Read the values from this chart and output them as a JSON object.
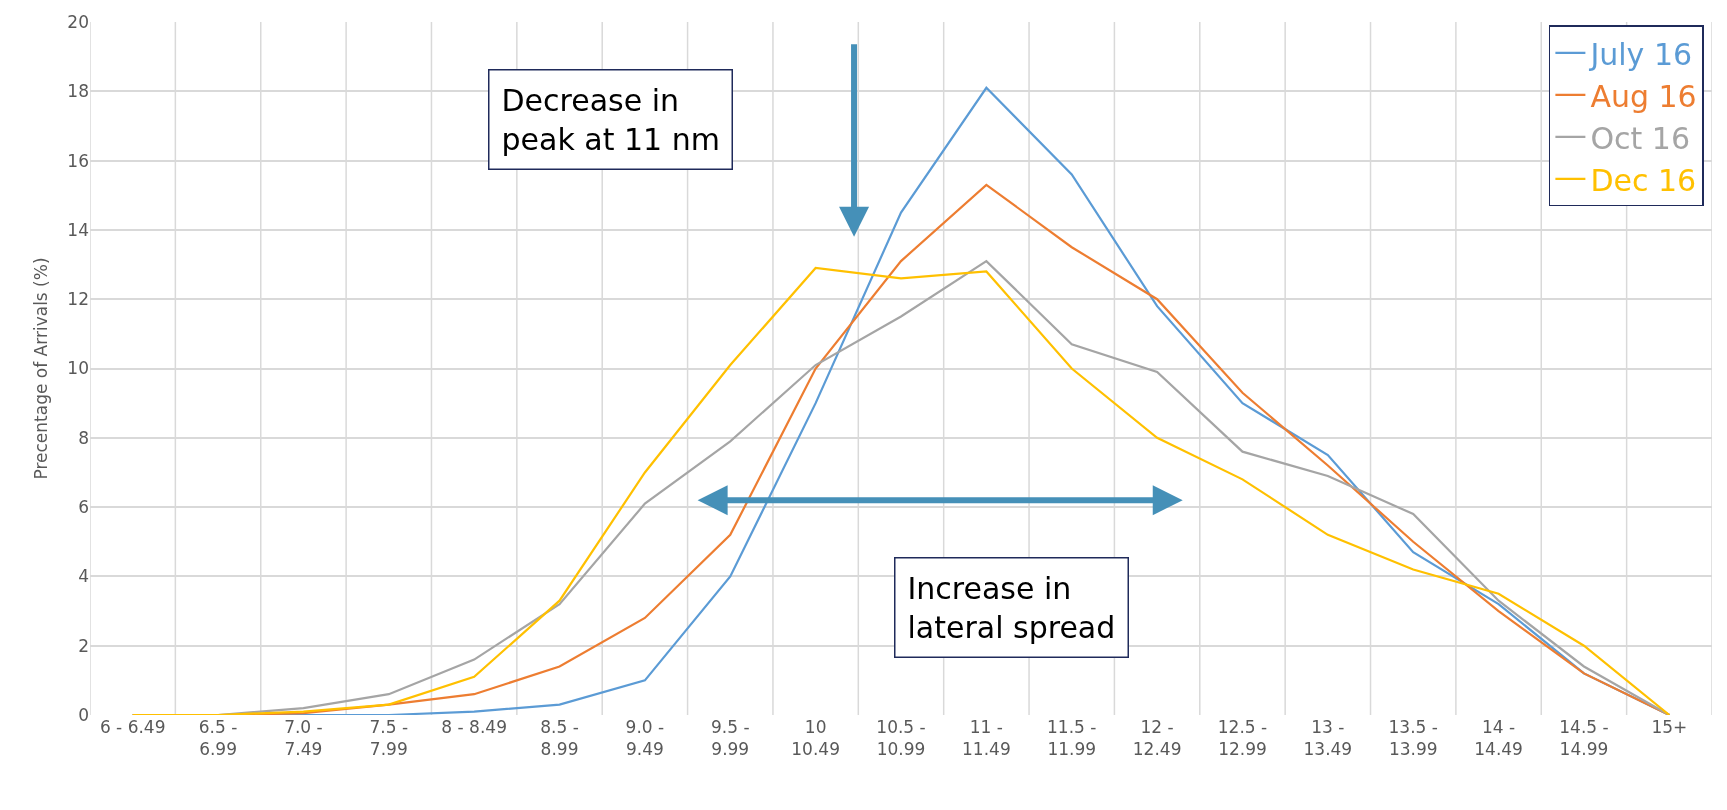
{
  "chart_data": {
    "type": "line",
    "ylabel": "Precentage of Arrivals (%)",
    "categories": [
      "6 - 6.49",
      "6.5 -\n6.99",
      "7.0 -\n7.49",
      "7.5 -\n7.99",
      "8 - 8.49",
      "8.5 -\n8.99",
      "9.0 -\n9.49",
      "9.5 -\n9.99",
      "10\n10.49",
      "10.5 -\n10.99",
      "11 -\n11.49",
      "11.5 -\n11.99",
      "12 -\n12.49",
      "12.5 -\n12.99",
      "13 -\n13.49",
      "13.5 -\n13.99",
      "14 -\n14.49",
      "14.5 -\n14.99",
      "15+"
    ],
    "series": [
      {
        "name": "July 16",
        "color": "#5b9bd5",
        "values": [
          0,
          0,
          0,
          0,
          0.1,
          0.3,
          1.0,
          4.0,
          9.0,
          14.5,
          18.1,
          15.6,
          11.8,
          9.0,
          7.5,
          4.7,
          3.2,
          1.2,
          0
        ]
      },
      {
        "name": "Aug 16",
        "color": "#ed7d31",
        "values": [
          0,
          0,
          0.05,
          0.3,
          0.6,
          1.4,
          2.8,
          5.2,
          10.0,
          13.1,
          15.3,
          13.5,
          12.0,
          9.3,
          7.2,
          5.0,
          3.0,
          1.2,
          0
        ]
      },
      {
        "name": "Oct 16",
        "color": "#a5a5a5",
        "values": [
          0,
          0,
          0.2,
          0.6,
          1.6,
          3.2,
          6.1,
          7.9,
          10.1,
          11.5,
          13.1,
          10.7,
          9.9,
          7.6,
          6.9,
          5.8,
          3.3,
          1.4,
          0
        ]
      },
      {
        "name": "Dec 16",
        "color": "#ffc000",
        "values": [
          0,
          0,
          0.1,
          0.3,
          1.1,
          3.3,
          7.0,
          10.1,
          12.9,
          12.6,
          12.8,
          10.0,
          8.0,
          6.8,
          5.2,
          4.2,
          3.5,
          2.0,
          0
        ]
      }
    ],
    "ylim": [
      0,
      20
    ],
    "yticks": [
      0,
      2,
      4,
      6,
      8,
      10,
      12,
      14,
      16,
      18,
      20
    ],
    "grid": true,
    "legend": "top right",
    "marker": "none",
    "line_style": "solid",
    "annotations": [
      "Decrease in\npeak at 11 nm",
      "Increase in\nlateral spread"
    ]
  }
}
